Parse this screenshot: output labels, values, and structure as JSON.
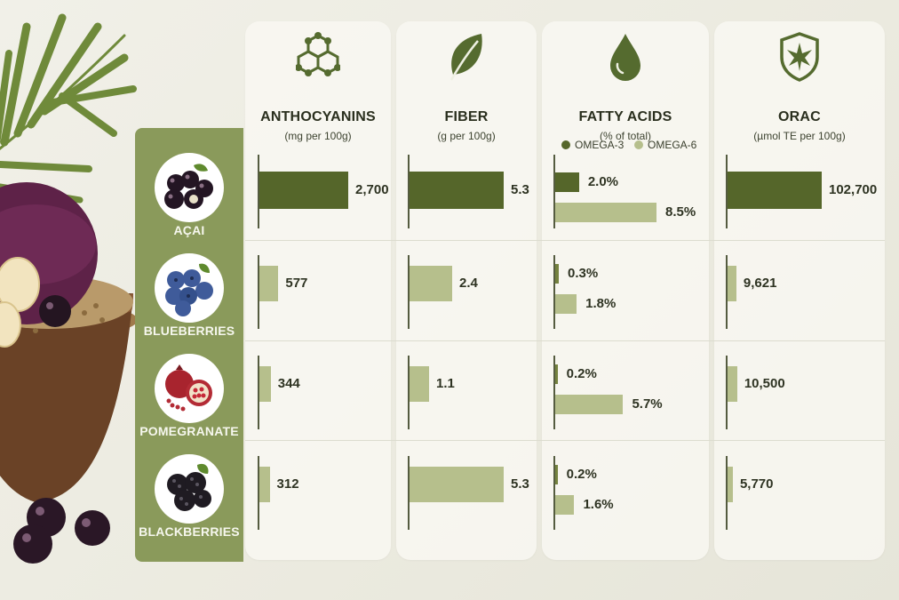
{
  "chart_data": {
    "type": "bar",
    "categories": [
      "AÇAI",
      "BLUEBERRIES",
      "POMEGRANATE",
      "BLACKBERRIES"
    ],
    "columns": [
      {
        "key": "anthocyanins",
        "title": "ANTHOCYANINS",
        "unit": "(mg per 100g)",
        "icon": "molecule-icon",
        "max": 2700,
        "values": [
          2700,
          577,
          344,
          312
        ],
        "labels": [
          "2,700",
          "577",
          "344",
          "312"
        ]
      },
      {
        "key": "fiber",
        "title": "FIBER",
        "unit": "(g per 100g)",
        "icon": "leaf-icon",
        "max": 5.3,
        "values": [
          5.3,
          2.4,
          1.1,
          5.3
        ],
        "labels": [
          "5.3",
          "2.4",
          "1.1",
          "5.3"
        ]
      },
      {
        "key": "fatty_acids",
        "title": "FATTY ACIDS",
        "unit": "(% of total)",
        "icon": "oil-drop-icon",
        "max": 8.5,
        "series": [
          {
            "name": "OMEGA-3",
            "values": [
              2.0,
              0.3,
              0.2,
              0.2
            ],
            "labels": [
              "2.0%",
              "0.3%",
              "0.2%",
              "0.2%"
            ]
          },
          {
            "name": "OMEGA-6",
            "values": [
              8.5,
              1.8,
              5.7,
              1.6
            ],
            "labels": [
              "8.5%",
              "1.8%",
              "5.7%",
              "1.6%"
            ]
          }
        ]
      },
      {
        "key": "orac",
        "title": "ORAC",
        "unit": "(µmol TE per 100g)",
        "icon": "shield-leaf-icon",
        "max": 102700,
        "values": [
          102700,
          9621,
          10500,
          5770
        ],
        "labels": [
          "102,700",
          "9,621",
          "10,500",
          "5,770"
        ]
      }
    ],
    "legend": [
      "OMEGA-3",
      "OMEGA-6"
    ]
  },
  "colors": {
    "highlight": "#55662a",
    "other": "#b6bf8c",
    "sidebar": "#8a9a5b"
  },
  "fruit_icons": [
    "acai-berries-icon",
    "blueberries-icon",
    "pomegranate-icon",
    "blackberries-icon"
  ]
}
